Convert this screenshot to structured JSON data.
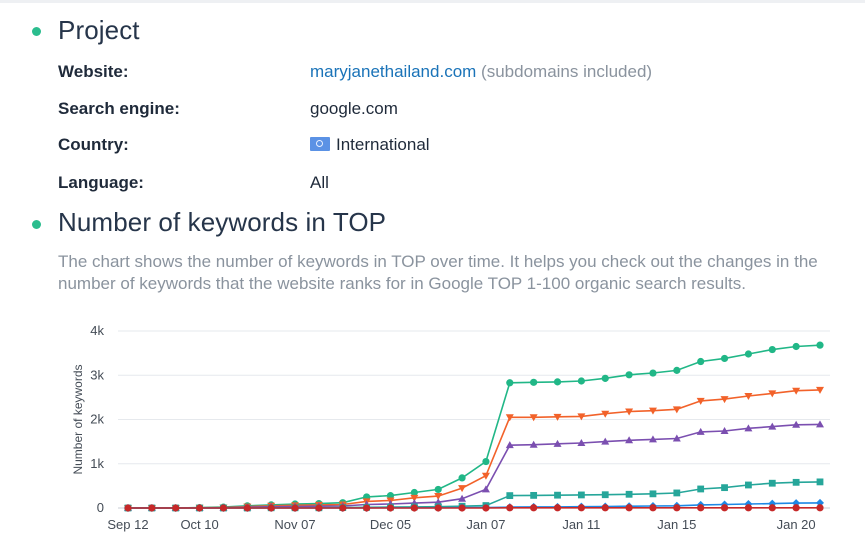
{
  "project": {
    "title": "Project",
    "website_label": "Website:",
    "website_value": "maryjanethailand.com",
    "website_note": "(subdomains included)",
    "engine_label": "Search engine:",
    "engine_value": "google.com",
    "country_label": "Country:",
    "country_value": "International",
    "country_flag_icon": "un-flag-icon",
    "language_label": "Language:",
    "language_value": "All"
  },
  "keywords_section": {
    "title": "Number of keywords in TOP",
    "description": "The chart shows the number of keywords in TOP over time. It helps you check out the changes in the number of keywords that the website ranks for in Google TOP 1-100 organic search results."
  },
  "colors": {
    "bullet": "#2bbd8e",
    "link": "#1a73b8"
  },
  "chart_data": {
    "type": "line",
    "ylabel": "Number of keywords",
    "xlabel": "",
    "ylim": [
      0,
      4000
    ],
    "y_ticks": [
      0,
      1000,
      2000,
      3000,
      4000
    ],
    "y_tick_labels": [
      "0",
      "1k",
      "2k",
      "3k",
      "4k"
    ],
    "x_tick_labels": [
      "Sep 12",
      "Oct 10",
      "Nov 07",
      "Dec 05",
      "Jan 07",
      "Jan 11",
      "Jan 15",
      "Jan 20"
    ],
    "x_tick_index": [
      0,
      3,
      7,
      11,
      15,
      19,
      23,
      28
    ],
    "grid": true,
    "x_count": 30,
    "series": [
      {
        "color": "#21b787",
        "marker": "circle",
        "values": [
          0,
          0,
          0,
          10,
          20,
          50,
          70,
          90,
          100,
          120,
          250,
          280,
          350,
          420,
          680,
          1050,
          2830,
          2840,
          2850,
          2870,
          2930,
          3010,
          3050,
          3110,
          3310,
          3380,
          3480,
          3580,
          3650,
          3680
        ]
      },
      {
        "color": "#f2622a",
        "marker": "triangle-down",
        "values": [
          0,
          0,
          0,
          5,
          10,
          30,
          50,
          60,
          70,
          80,
          150,
          170,
          230,
          270,
          450,
          730,
          2050,
          2050,
          2060,
          2070,
          2130,
          2180,
          2200,
          2230,
          2420,
          2460,
          2530,
          2590,
          2650,
          2670
        ]
      },
      {
        "color": "#7b4fb0",
        "marker": "triangle-up",
        "values": [
          0,
          0,
          0,
          2,
          5,
          15,
          30,
          35,
          40,
          45,
          80,
          90,
          110,
          130,
          210,
          420,
          1420,
          1430,
          1450,
          1470,
          1500,
          1530,
          1550,
          1570,
          1720,
          1740,
          1800,
          1840,
          1880,
          1890
        ]
      },
      {
        "color": "#26a69a",
        "marker": "square",
        "values": [
          0,
          0,
          0,
          0,
          0,
          0,
          5,
          5,
          5,
          10,
          15,
          20,
          25,
          30,
          40,
          55,
          280,
          285,
          290,
          295,
          300,
          310,
          320,
          340,
          430,
          460,
          520,
          560,
          580,
          590
        ]
      },
      {
        "color": "#1e88e5",
        "marker": "diamond",
        "values": [
          0,
          0,
          0,
          0,
          0,
          0,
          0,
          0,
          0,
          0,
          0,
          5,
          5,
          5,
          10,
          10,
          20,
          25,
          25,
          30,
          35,
          40,
          45,
          50,
          70,
          80,
          90,
          100,
          110,
          115
        ]
      },
      {
        "color": "#c62828",
        "marker": "circle",
        "values": [
          0,
          0,
          0,
          0,
          0,
          0,
          0,
          0,
          0,
          0,
          0,
          0,
          0,
          0,
          0,
          0,
          5,
          5,
          5,
          5,
          5,
          5,
          5,
          5,
          5,
          5,
          5,
          5,
          5,
          5
        ]
      }
    ]
  }
}
